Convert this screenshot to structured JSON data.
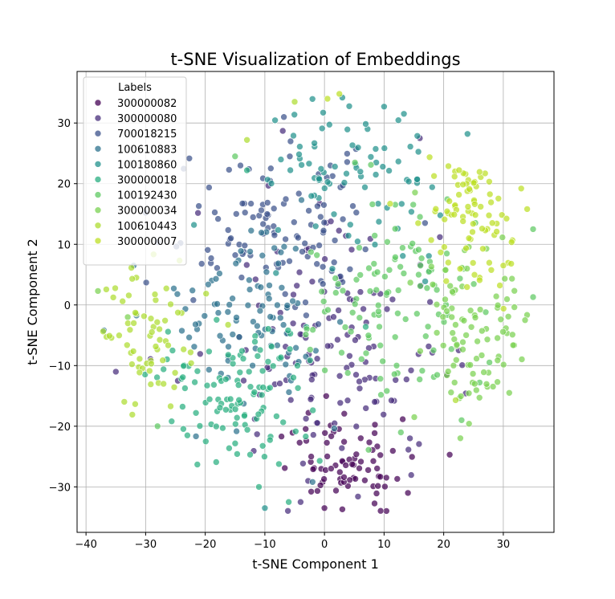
{
  "chart_data": {
    "type": "scatter",
    "title": "t-SNE Visualization of Embeddings",
    "xlabel": "t-SNE Component 1",
    "ylabel": "t-SNE Component 2",
    "xlim": [
      -41.5,
      38.5
    ],
    "ylim": [
      -37.5,
      38.5
    ],
    "xticks": [
      -40,
      -30,
      -20,
      -10,
      0,
      10,
      20,
      30
    ],
    "yticks": [
      -30,
      -20,
      -10,
      0,
      10,
      20,
      30
    ],
    "grid": true,
    "legend": {
      "title": "Labels",
      "placement": "top-left"
    },
    "series": [
      {
        "name": "300000082",
        "color": "#440154",
        "center": [
          4,
          -26
        ],
        "spread": [
          5,
          4
        ],
        "count": 75,
        "fixed_points": [
          [
            0,
            -33.5
          ],
          [
            3,
            -33.7
          ],
          [
            21,
            -24.7
          ],
          [
            14,
            -31
          ]
        ]
      },
      {
        "name": "300000080",
        "color": "#472d7b",
        "center": [
          2,
          -8
        ],
        "spread": [
          9,
          10
        ],
        "count": 130,
        "fixed_points": [
          [
            -35,
            -11
          ],
          [
            -7,
            28.7
          ],
          [
            -4,
            -32.5
          ],
          [
            16,
            27.5
          ]
        ]
      },
      {
        "name": "700018215",
        "color": "#3b528b",
        "center": [
          -5,
          12
        ],
        "spread": [
          10,
          7
        ],
        "count": 110,
        "fixed_points": [
          [
            -16,
            22.3
          ],
          [
            1,
            23
          ],
          [
            -22,
            0.8
          ]
        ]
      },
      {
        "name": "100610883",
        "color": "#2c728e",
        "center": [
          -12,
          -2
        ],
        "spread": [
          7,
          8
        ],
        "count": 95,
        "fixed_points": [
          [
            -37,
            -4.2
          ],
          [
            -32,
            6.5
          ],
          [
            -2,
            -29.2
          ]
        ]
      },
      {
        "name": "100180860",
        "color": "#21918c",
        "center": [
          5,
          22
        ],
        "spread": [
          8,
          7
        ],
        "count": 85,
        "fixed_points": [
          [
            10,
            32.7
          ],
          [
            3,
            34.2
          ],
          [
            -10,
            -33.5
          ],
          [
            24,
            28.2
          ]
        ]
      },
      {
        "name": "300000018",
        "color": "#28ae80",
        "center": [
          -15,
          -15
        ],
        "spread": [
          7,
          6
        ],
        "count": 110,
        "fixed_points": [
          [
            -23,
            -21.5
          ],
          [
            -11,
            -30
          ],
          [
            -6,
            -32.5
          ],
          [
            -13,
            22.2
          ]
        ]
      },
      {
        "name": "100192430",
        "color": "#5ec962",
        "center": [
          10,
          0
        ],
        "spread": [
          8,
          9
        ],
        "count": 110,
        "fixed_points": [
          [
            23,
            -19
          ],
          [
            35,
            1.3
          ],
          [
            35,
            12.5
          ],
          [
            -28,
            -20
          ],
          [
            -15,
            24.5
          ]
        ]
      },
      {
        "name": "300000034",
        "color": "#7ad151",
        "center": [
          25,
          -3
        ],
        "spread": [
          5,
          8
        ],
        "count": 95,
        "fixed_points": [
          [
            31,
            -14.5
          ],
          [
            26,
            -15.3
          ],
          [
            -33,
            -2
          ],
          [
            -38,
            2.3
          ]
        ]
      },
      {
        "name": "100610443",
        "color": "#addc30",
        "center": [
          -30,
          -5
        ],
        "spread": [
          5,
          6
        ],
        "count": 65,
        "fixed_points": [
          [
            -5,
            33.5
          ],
          [
            22,
            -15.7
          ],
          [
            -13,
            27.2
          ],
          [
            -27,
            -13
          ]
        ]
      },
      {
        "name": "300000007",
        "color": "#bddf26",
        "center": [
          26,
          15
        ],
        "spread": [
          5,
          5
        ],
        "count": 85,
        "fixed_points": [
          [
            2.5,
            34.8
          ],
          [
            0.5,
            34
          ],
          [
            33,
            19.2
          ],
          [
            34,
            15.8
          ],
          [
            30,
            6.5
          ]
        ]
      }
    ]
  }
}
